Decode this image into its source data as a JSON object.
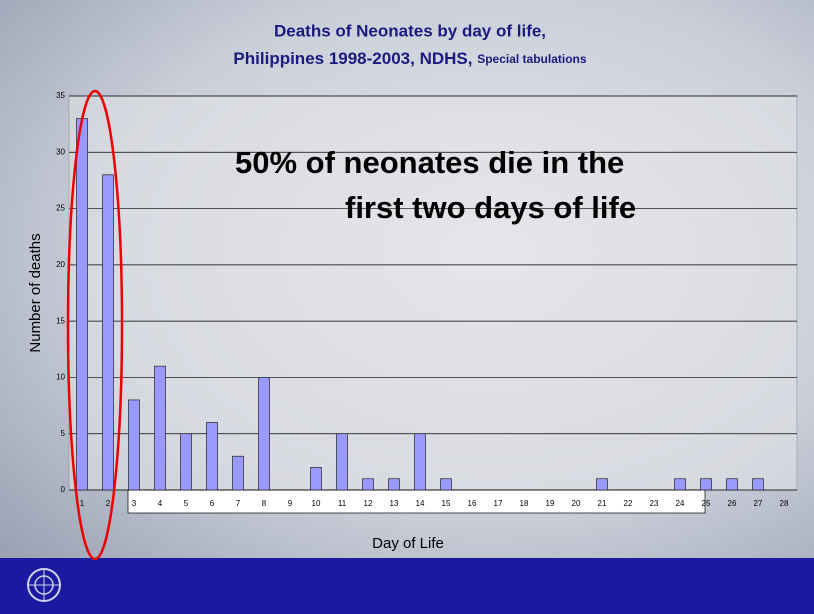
{
  "chart_data": {
    "type": "bar",
    "title": [
      "Deaths of Neonates by day of life,",
      "Philippines 1998-2003, NDHS,"
    ],
    "subtitle": "Special tabulations",
    "annotation": [
      "50% of neonates die in the",
      "first two days of life"
    ],
    "x_label": "Day of Life",
    "y_label": "Number of deaths",
    "categories": [
      "1",
      "2",
      "3",
      "4",
      "5",
      "6",
      "7",
      "8",
      "9",
      "10",
      "11",
      "12",
      "13",
      "14",
      "15",
      "16",
      "17",
      "18",
      "19",
      "20",
      "21",
      "22",
      "23",
      "24",
      "25",
      "26",
      "27",
      "28"
    ],
    "values": [
      33,
      28,
      8,
      11,
      5,
      6,
      3,
      10,
      0,
      2,
      5,
      1,
      1,
      5,
      1,
      0,
      0,
      0,
      0,
      0,
      1,
      0,
      0,
      1,
      1,
      1,
      1,
      0
    ],
    "color": "#9999ff",
    "ylim": [
      0,
      35
    ],
    "yticks": [
      0,
      5,
      10,
      15,
      20,
      25,
      30,
      35
    ],
    "grid": true
  }
}
